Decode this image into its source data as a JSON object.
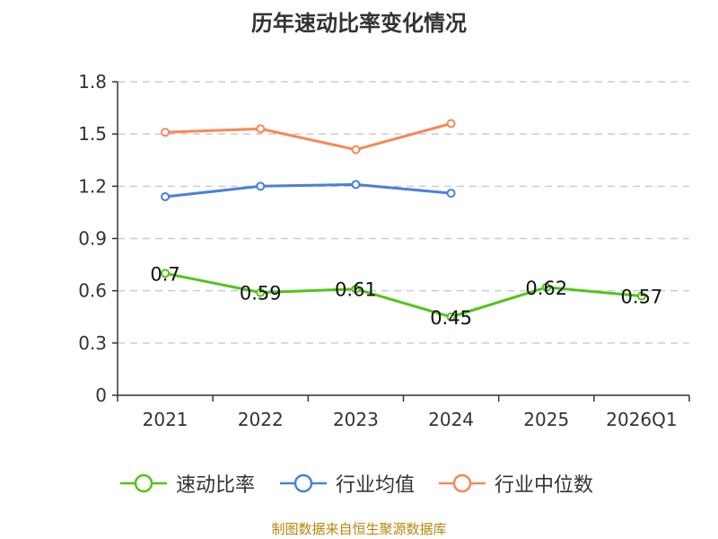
{
  "chart_data": {
    "type": "line",
    "title": "历年速动比率变化情况",
    "categories": [
      "2021",
      "2022",
      "2023",
      "2024",
      "2025",
      "2026Q1"
    ],
    "ylim": [
      0,
      1.8
    ],
    "yticks": [
      "0",
      "0.3",
      "0.6",
      "0.9",
      "1.2",
      "1.5",
      "1.8"
    ],
    "grid": true,
    "legend_position": "bottom",
    "series": [
      {
        "name": "速动比率",
        "color": "#52c41a",
        "values": [
          0.7,
          0.59,
          0.61,
          0.45,
          0.62,
          0.57
        ],
        "labels": [
          "0.7",
          "0.59",
          "0.61",
          "0.45",
          "0.62",
          "0.57"
        ]
      },
      {
        "name": "行业均值",
        "color": "#4a7fdc",
        "values": [
          1.14,
          1.2,
          1.21,
          1.16,
          null,
          null
        ]
      },
      {
        "name": "行业中位数",
        "color": "#f5885a",
        "values": [
          1.51,
          1.53,
          1.41,
          1.56,
          null,
          null
        ]
      }
    ]
  },
  "source": "制图数据来自恒生聚源数据库"
}
